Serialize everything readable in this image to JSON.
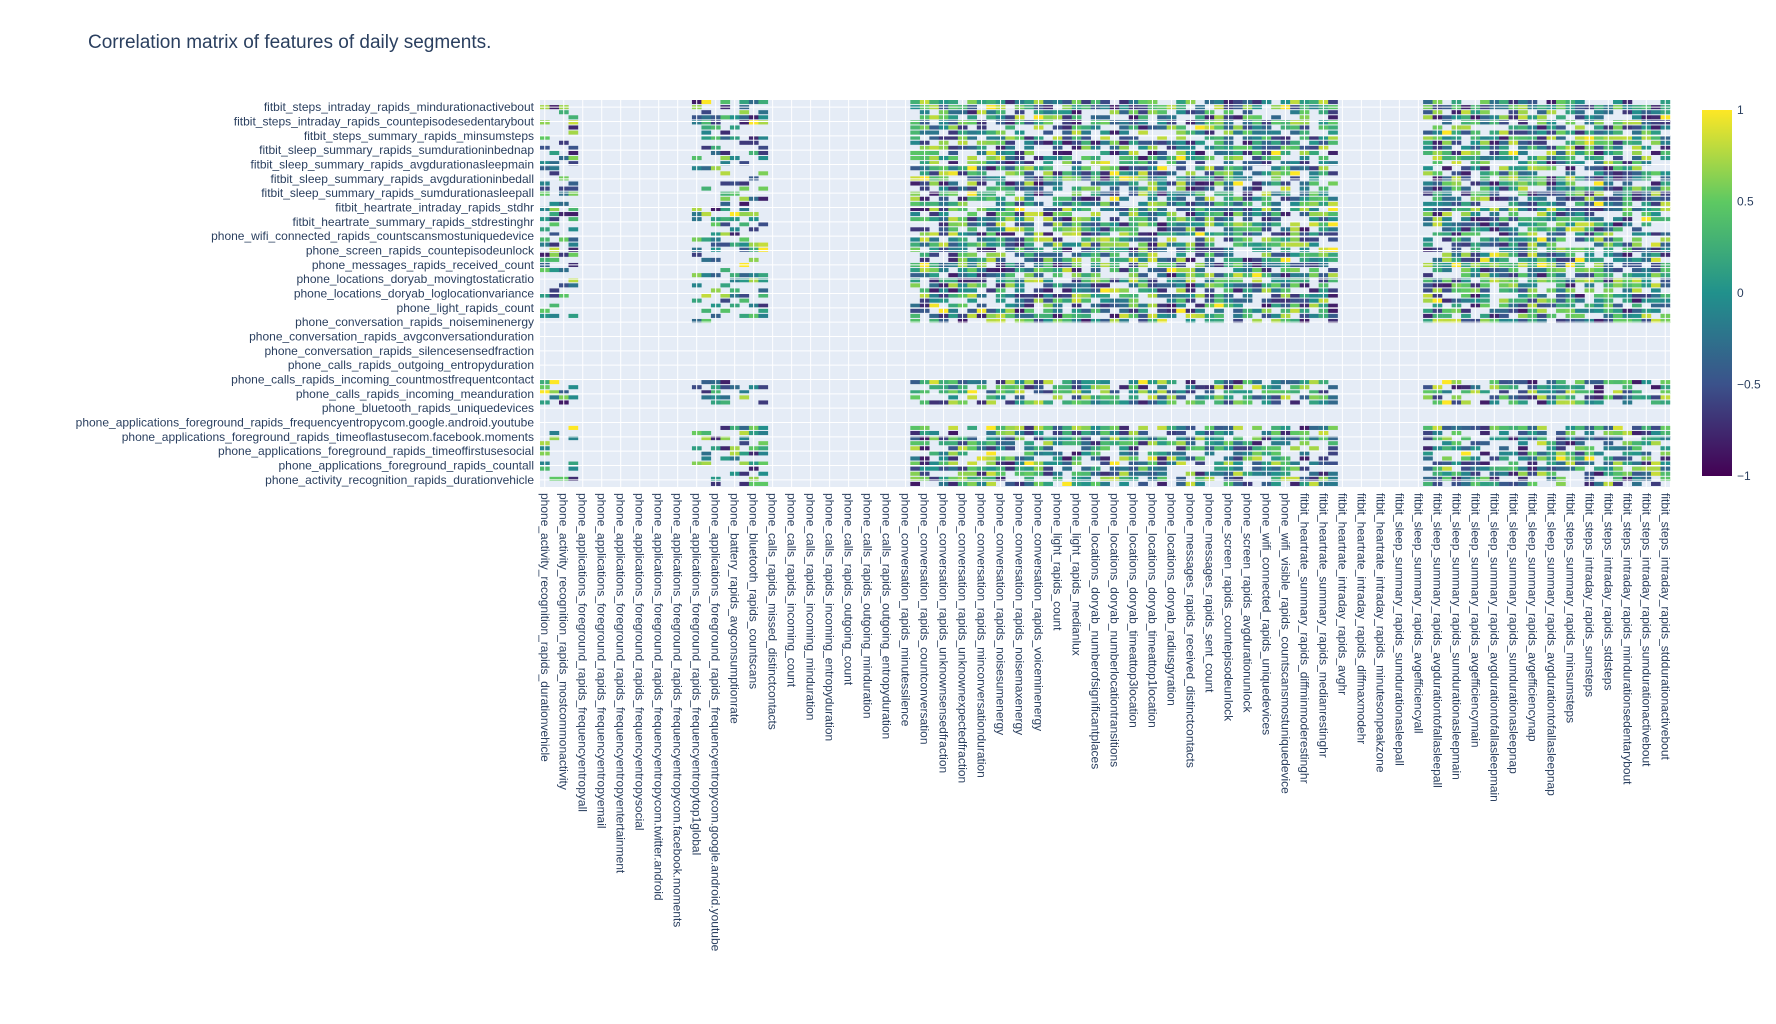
{
  "chart_data": {
    "type": "heatmap",
    "title": "Correlation matrix of features of daily segments.",
    "colorscale": "Viridis",
    "colorscale_colors": [
      "#440154",
      "#3b528b",
      "#21918c",
      "#5ec962",
      "#fde725"
    ],
    "plot_background": "#e5ecf6",
    "zrange": [
      -1,
      1
    ],
    "colorbar_ticks": [
      "1",
      "0.5",
      "0",
      "−0.5",
      "−1"
    ],
    "colorbar_tick_values": [
      1,
      0.5,
      0,
      -0.5,
      -1
    ],
    "x_labels": [
      "phone_activity_recognition_rapids_durationvehicle",
      "phone_activity_recognition_rapids_mostcommonactivity",
      "phone_applications_foreground_rapids_frequencyentropyall",
      "phone_applications_foreground_rapids_frequencyentropyemail",
      "phone_applications_foreground_rapids_frequencyentropyentertainment",
      "phone_applications_foreground_rapids_frequencyentropysocial",
      "phone_applications_foreground_rapids_frequencyentropycom.twitter.android",
      "phone_applications_foreground_rapids_frequencyentropycom.facebook.moments",
      "phone_applications_foreground_rapids_frequencyentropytop1global",
      "phone_applications_foreground_rapids_frequencyentropycom.google.android.youtube",
      "phone_battery_rapids_avgconsumptionrate",
      "phone_bluetooth_rapids_countscans",
      "phone_calls_rapids_missed_distinctcontacts",
      "phone_calls_rapids_incoming_count",
      "phone_calls_rapids_incoming_minduration",
      "phone_calls_rapids_incoming_entropyduration",
      "phone_calls_rapids_outgoing_count",
      "phone_calls_rapids_outgoing_minduration",
      "phone_calls_rapids_outgoing_entropyduration",
      "phone_conversation_rapids_minutessilence",
      "phone_conversation_rapids_countconversation",
      "phone_conversation_rapids_unknownsensedfraction",
      "phone_conversation_rapids_unknownexpectedfraction",
      "phone_conversation_rapids_minconversationduration",
      "phone_conversation_rapids_noisesumenergy",
      "phone_conversation_rapids_noisemaxenergy",
      "phone_conversation_rapids_voiceminenergy",
      "phone_light_rapids_count",
      "phone_light_rapids_medianlux",
      "phone_locations_doryab_numberofsignificantplaces",
      "phone_locations_doryab_numberlocationtransitions",
      "phone_locations_doryab_timeattop3location",
      "phone_locations_doryab_timeattop1location",
      "phone_locations_doryab_radiusgyration",
      "phone_messages_rapids_received_distinctcontacts",
      "phone_messages_rapids_sent_count",
      "phone_screen_rapids_countepisodeunlock",
      "phone_screen_rapids_avgdurationunlock",
      "phone_wifi_connected_rapids_uniquedevices",
      "phone_wifi_visible_rapids_countscansmostuniquedevice",
      "fitbit_heartrate_summary_rapids_diffminmoderestinghr",
      "fitbit_heartrate_summary_rapids_medianrestinghr",
      "fitbit_heartrate_intraday_rapids_avghr",
      "fitbit_heartrate_intraday_rapids_diffmaxmodehr",
      "fitbit_heartrate_intraday_rapids_minutesonpeakzone",
      "fitbit_sleep_summary_rapids_sumdurationasleepall",
      "fitbit_sleep_summary_rapids_avgefficiencyall",
      "fitbit_sleep_summary_rapids_avgdurationtofallasleepall",
      "fitbit_sleep_summary_rapids_sumdurationasleepmain",
      "fitbit_sleep_summary_rapids_avgefficiencymain",
      "fitbit_sleep_summary_rapids_avgdurationtofallasleepmain",
      "fitbit_sleep_summary_rapids_sumdurationasleepnap",
      "fitbit_sleep_summary_rapids_avgefficiencynap",
      "fitbit_sleep_summary_rapids_avgdurationtofallasleepnap",
      "fitbit_steps_summary_rapids_minsumsteps",
      "fitbit_steps_intraday_rapids_sumsteps",
      "fitbit_steps_intraday_rapids_stdsteps",
      "fitbit_steps_intraday_rapids_mindurationsedentarybout",
      "fitbit_steps_intraday_rapids_sumdurationactivebout",
      "fitbit_steps_intraday_rapids_stddurationactivebout"
    ],
    "y_labels": [
      "fitbit_steps_intraday_rapids_mindurationactivebout",
      "fitbit_steps_intraday_rapids_countepisodesedentarybout",
      "fitbit_steps_summary_rapids_minsumsteps",
      "fitbit_sleep_summary_rapids_sumdurationinbednap",
      "fitbit_sleep_summary_rapids_avgdurationasleepmain",
      "fitbit_sleep_summary_rapids_avgdurationinbedall",
      "fitbit_sleep_summary_rapids_sumdurationasleepall",
      "fitbit_heartrate_intraday_rapids_stdhr",
      "fitbit_heartrate_summary_rapids_stdrestinghr",
      "phone_wifi_connected_rapids_countscansmostuniquedevice",
      "phone_screen_rapids_countepisodeunlock",
      "phone_messages_rapids_received_count",
      "phone_locations_doryab_movingtostaticratio",
      "phone_locations_doryab_loglocationvariance",
      "phone_light_rapids_count",
      "phone_conversation_rapids_noiseminenergy",
      "phone_conversation_rapids_avgconversationduration",
      "phone_conversation_rapids_silencesensedfraction",
      "phone_calls_rapids_outgoing_entropyduration",
      "phone_calls_rapids_incoming_countmostfrequentcontact",
      "phone_calls_rapids_incoming_meanduration",
      "phone_bluetooth_rapids_uniquedevices",
      "phone_applications_foreground_rapids_frequencyentropycom.google.android.youtube",
      "phone_applications_foreground_rapids_timeoflastusecom.facebook.moments",
      "phone_applications_foreground_rapids_timeoffirstusesocial",
      "phone_applications_foreground_rapids_countall",
      "phone_activity_recognition_rapids_durationvehicle"
    ],
    "xlabel": "",
    "ylabel": ""
  }
}
